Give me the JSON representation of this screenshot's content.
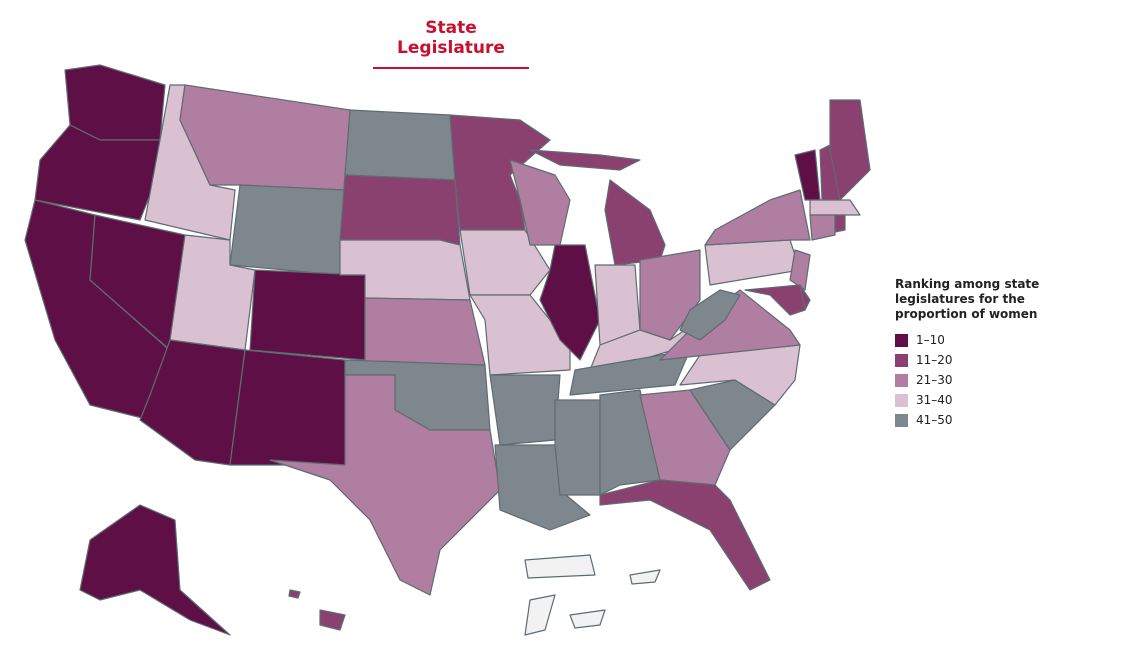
{
  "title": "State Legislature",
  "legend": {
    "title": "Ranking among state legislatures for the proportion of women",
    "items": [
      {
        "label": "1–10",
        "color": "#5e1046"
      },
      {
        "label": "11–20",
        "color": "#8a416f"
      },
      {
        "label": "21–30",
        "color": "#b07ea0"
      },
      {
        "label": "31–40",
        "color": "#d9c1d1"
      },
      {
        "label": "41–50",
        "color": "#7d878d"
      }
    ]
  }
}
